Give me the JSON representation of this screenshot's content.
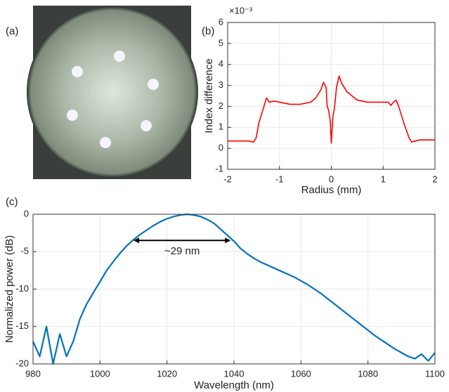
{
  "panel_labels": [
    "(a)",
    "(b)",
    "(c)"
  ],
  "chart_data": [
    {
      "type": "line",
      "xlabel": "Radius (mm)",
      "ylabel": "Index difference",
      "scale_label": "×10⁻³",
      "x": [
        -2,
        -1.6,
        -1.5,
        -1.45,
        -1.4,
        -1.3,
        -1.25,
        -1.2,
        -1.1,
        -1.0,
        -0.8,
        -0.6,
        -0.4,
        -0.3,
        -0.2,
        -0.15,
        -0.1,
        -0.08,
        -0.05,
        -0.02,
        0,
        0.03,
        0.06,
        0.1,
        0.15,
        0.2,
        0.3,
        0.4,
        0.5,
        0.7,
        0.9,
        1.0,
        1.1,
        1.15,
        1.2,
        1.25,
        1.3,
        1.4,
        1.5,
        1.55,
        1.7,
        2
      ],
      "series": [
        {
          "color": "#ff0000",
          "values": [
            0.35,
            0.35,
            0.3,
            0.5,
            1.2,
            2.0,
            2.4,
            2.2,
            2.25,
            2.2,
            2.1,
            2.1,
            2.2,
            2.4,
            2.8,
            3.15,
            2.9,
            2.0,
            1.8,
            1.3,
            0.25,
            1.5,
            1.9,
            2.9,
            3.45,
            3.1,
            2.7,
            2.5,
            2.3,
            2.2,
            2.2,
            2.2,
            2.2,
            2.05,
            2.2,
            2.3,
            2.0,
            1.2,
            0.5,
            0.3,
            0.4,
            0.4
          ]
        }
      ],
      "xlim": [
        -2,
        2
      ],
      "ylim": [
        -1,
        6
      ],
      "xticks": [
        -2,
        -1,
        0,
        1,
        2
      ],
      "yticks": [
        -1,
        0,
        1,
        2,
        3,
        4,
        5,
        6
      ],
      "grid": true
    },
    {
      "type": "line",
      "xlabel": "Wavelength (nm)",
      "ylabel": "Normalized power (dB)",
      "x": [
        980,
        982,
        984,
        986,
        988,
        990,
        992,
        994,
        996,
        998,
        1000,
        1002,
        1004,
        1006,
        1008,
        1010,
        1012,
        1014,
        1016,
        1018,
        1020,
        1022,
        1024,
        1026,
        1028,
        1030,
        1032,
        1034,
        1036,
        1038,
        1040,
        1042,
        1044,
        1046,
        1048,
        1050,
        1052,
        1054,
        1056,
        1058,
        1060,
        1062,
        1064,
        1066,
        1068,
        1070,
        1072,
        1074,
        1076,
        1078,
        1080,
        1082,
        1084,
        1086,
        1088,
        1090,
        1092,
        1094,
        1096,
        1098,
        1100
      ],
      "series": [
        {
          "color": "#0072bd",
          "values": [
            -17,
            -19,
            -15,
            -20,
            -16,
            -19,
            -17,
            -14,
            -12,
            -10.5,
            -9,
            -7.5,
            -6.3,
            -5.2,
            -4.2,
            -3.4,
            -2.7,
            -2.1,
            -1.5,
            -1.0,
            -0.6,
            -0.3,
            -0.1,
            0,
            -0.1,
            -0.3,
            -0.7,
            -1.2,
            -2.0,
            -2.8,
            -3.6,
            -4.6,
            -5.3,
            -5.9,
            -6.4,
            -6.8,
            -7.2,
            -7.6,
            -8.0,
            -8.4,
            -8.9,
            -9.4,
            -10.0,
            -10.6,
            -11.3,
            -12.0,
            -12.7,
            -13.4,
            -14.1,
            -14.8,
            -15.5,
            -16.2,
            -16.8,
            -17.4,
            -18.0,
            -18.5,
            -19.0,
            -19.3,
            -18.7,
            -19.6,
            -18.5
          ]
        }
      ],
      "xlim": [
        980,
        1100
      ],
      "ylim": [
        -20,
        0
      ],
      "xticks": [
        980,
        1000,
        1020,
        1040,
        1060,
        1080,
        1100
      ],
      "yticks": [
        -20,
        -15,
        -10,
        -5,
        0
      ],
      "grid": true,
      "annotations": [
        {
          "text": "~29 nm",
          "x": [
            1010,
            1039
          ],
          "y": -3.5
        }
      ]
    }
  ]
}
